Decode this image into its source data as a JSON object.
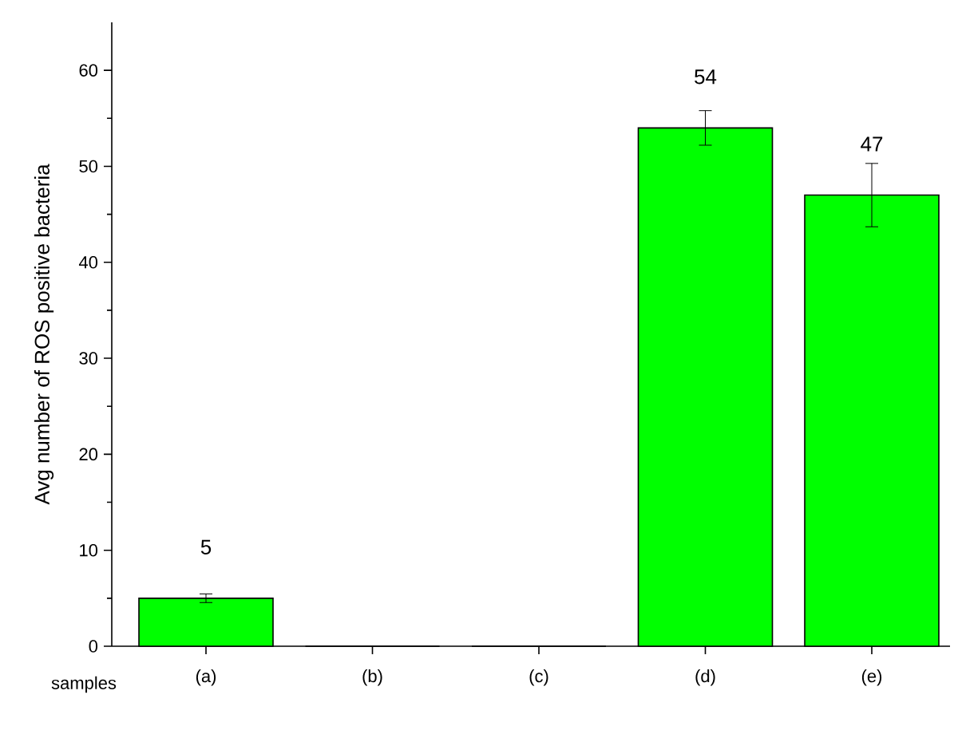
{
  "chart_data": {
    "type": "bar",
    "xlabel": "samples",
    "ylabel": "Avg number of ROS positive bacteria",
    "categories": [
      "(a)",
      "(b)",
      "(c)",
      "(d)",
      "(e)"
    ],
    "values": [
      5,
      0,
      0,
      54,
      47
    ],
    "errors": [
      0.45,
      null,
      null,
      1.8,
      3.3
    ],
    "value_labels": [
      "5",
      null,
      null,
      "54",
      "47"
    ],
    "color": "#00ff00",
    "ylim": [
      0,
      65
    ],
    "yticks": [
      0,
      10,
      20,
      30,
      40,
      50,
      60
    ],
    "grid": false
  }
}
